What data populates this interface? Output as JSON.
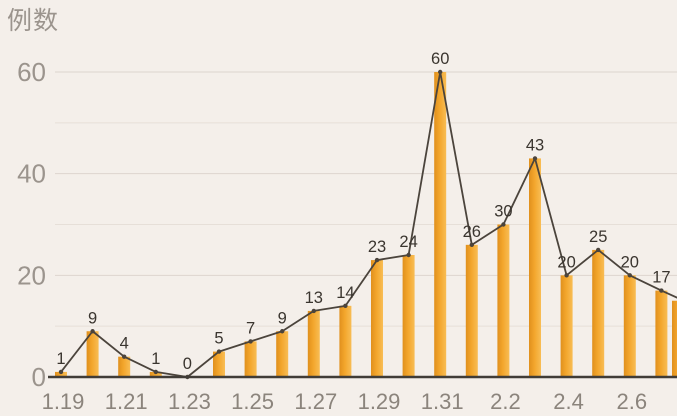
{
  "chart_data": {
    "type": "bar",
    "overlay": "line",
    "title": "",
    "xlabel": "",
    "ylabel": "例数",
    "values": [
      1,
      9,
      4,
      1,
      0,
      5,
      7,
      9,
      13,
      14,
      23,
      24,
      60,
      26,
      30,
      43,
      20,
      25,
      20,
      17
    ],
    "data_labels_shown": true,
    "x_tick_labels": [
      "1.19",
      "1.21",
      "1.23",
      "1.25",
      "1.27",
      "1.29",
      "1.31",
      "2.2",
      "2.4",
      "2.6"
    ],
    "x_tick_every": 2,
    "y_tick_labels": [
      "0",
      "20",
      "40",
      "60"
    ],
    "y_major_ticks": [
      0,
      20,
      40,
      60
    ],
    "y_grid_step": 10,
    "ylim": [
      0,
      60
    ],
    "legend": "none",
    "grid": "horizontal",
    "next_value_partially_visible": 15,
    "line_extends_past_right": true
  },
  "colors": {
    "background": "#f4efea",
    "bar_edge_dark": "#e0901d",
    "bar_mid": "#f3a62c",
    "bar_edge_light": "#f8bd55",
    "line": "#4b443c",
    "marker": "#4b443c",
    "grid_major": "#ddd5ce",
    "grid_minor": "#e6dfd8",
    "axis_line": "#403c37",
    "y_tick_label": "#9b948d",
    "x_tick_label": "#8b847c",
    "data_label": "#3a352f",
    "title": "#9b948d"
  }
}
